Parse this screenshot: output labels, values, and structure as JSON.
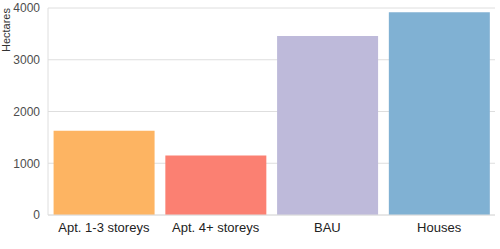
{
  "chart_data": {
    "type": "bar",
    "y_label": "Hectares",
    "categories": [
      "Apt. 1-3 storeys",
      "Apt. 4+ storeys",
      "BAU",
      "Houses"
    ],
    "values": [
      1630,
      1150,
      3460,
      3920
    ],
    "colors": [
      "#fdb462",
      "#fb8072",
      "#bebada",
      "#80b1d3"
    ],
    "ylim": [
      0,
      4000
    ],
    "yticks": [
      0,
      1000,
      2000,
      3000,
      4000
    ],
    "grid": true
  }
}
